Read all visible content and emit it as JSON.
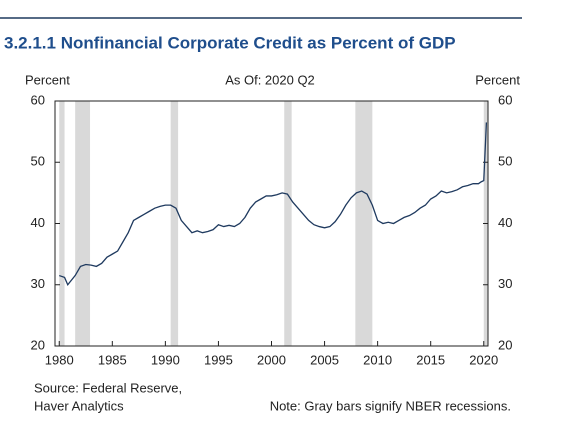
{
  "chart_data": {
    "type": "line",
    "title": "3.2.1.1 Nonfinancial Corporate Credit as Percent of GDP",
    "y_label": "Percent",
    "y2_label": "Percent",
    "subtitle": "As Of: 2020 Q2",
    "source": [
      "Source: Federal Reserve,",
      "Haver Analytics"
    ],
    "note": "Note: Gray bars signify NBER recessions.",
    "xlim": [
      1979.6,
      2020.4
    ],
    "xticks": [
      1980,
      1985,
      1990,
      1995,
      2000,
      2005,
      2010,
      2015,
      2020
    ],
    "ylim": [
      20,
      60
    ],
    "yticks": [
      20,
      30,
      40,
      50,
      60
    ],
    "y2lim": [
      20,
      60
    ],
    "y2ticks": [
      20,
      30,
      40,
      50,
      60
    ],
    "recession_color": "#d9d9d9",
    "recessions": [
      [
        1980.0,
        1980.5
      ],
      [
        1981.5,
        1982.9
      ],
      [
        1990.5,
        1991.2
      ],
      [
        2001.2,
        2001.9
      ],
      [
        2007.9,
        2009.5
      ],
      [
        2020.0,
        2020.4
      ]
    ],
    "series": [
      {
        "color": "#1f3a5f",
        "x": [
          1980,
          1980.5,
          1980.8,
          1981.5,
          1982,
          1982.5,
          1983,
          1983.5,
          1984,
          1984.5,
          1985,
          1985.5,
          1986,
          1986.5,
          1987,
          1987.5,
          1988,
          1988.5,
          1989,
          1989.5,
          1990,
          1990.5,
          1991,
          1991.5,
          1992,
          1992.5,
          1993,
          1993.5,
          1994,
          1994.5,
          1995,
          1995.5,
          1996,
          1996.5,
          1997,
          1997.5,
          1998,
          1998.5,
          1999,
          1999.5,
          2000,
          2000.5,
          2001,
          2001.5,
          2002,
          2002.5,
          2003,
          2003.5,
          2004,
          2004.5,
          2005,
          2005.5,
          2006,
          2006.5,
          2007,
          2007.5,
          2008,
          2008.5,
          2009,
          2009.5,
          2010,
          2010.5,
          2011,
          2011.5,
          2012,
          2012.5,
          2013,
          2013.5,
          2014,
          2014.5,
          2015,
          2015.5,
          2016,
          2016.5,
          2017,
          2017.5,
          2018,
          2018.5,
          2019,
          2019.5,
          2019.75,
          2020,
          2020.25
        ],
        "values": [
          31.5,
          31.2,
          30,
          31.5,
          33,
          33.3,
          33.2,
          33,
          33.5,
          34.5,
          35,
          35.5,
          37,
          38.5,
          40.5,
          41,
          41.5,
          42,
          42.5,
          42.8,
          43,
          43,
          42.5,
          40.5,
          39.5,
          38.5,
          38.8,
          38.5,
          38.7,
          39,
          39.8,
          39.5,
          39.7,
          39.5,
          40,
          41,
          42.5,
          43.5,
          44,
          44.5,
          44.5,
          44.7,
          45,
          44.8,
          43.5,
          42.5,
          41.5,
          40.5,
          39.8,
          39.5,
          39.3,
          39.5,
          40.3,
          41.5,
          43,
          44.2,
          45,
          45.3,
          44.8,
          43,
          40.5,
          40,
          40.2,
          40,
          40.5,
          41,
          41.3,
          41.8,
          42.5,
          43,
          44,
          44.5,
          45.3,
          45,
          45.2,
          45.5,
          46,
          46.2,
          46.5,
          46.5,
          46.8,
          47,
          56.5
        ]
      }
    ]
  }
}
